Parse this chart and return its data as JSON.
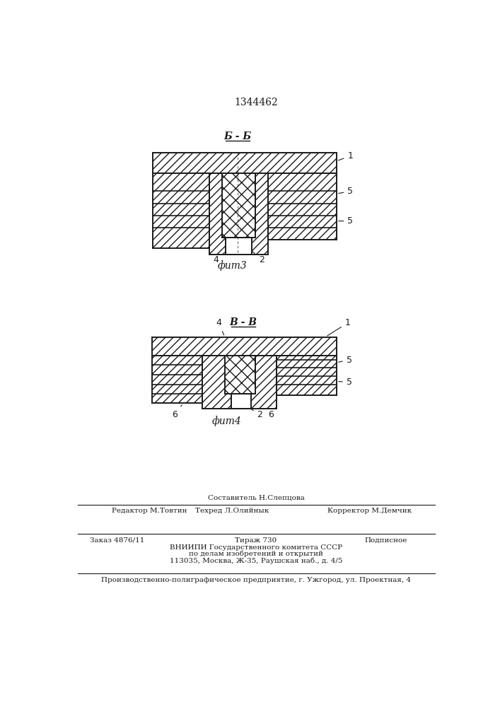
{
  "patent_number": "1344462",
  "fig3_label": "Б - Б",
  "fig3_caption": "фит3",
  "fig4_label": "В - В",
  "fig4_caption": "фит4",
  "bg_color": "#ffffff",
  "line_color": "#1a1a1a",
  "footer_sostavitel": "Составитель Н.Слепцова",
  "footer_redaktor": "Редактор М.Товтин",
  "footer_tekhred": "Техред Л.Олийнык",
  "footer_korrektor": "Корректор М.Демчик",
  "footer_zakaz": "Заказ 4876/11",
  "footer_tirazh": "Тираж 730",
  "footer_podp": "Подписное",
  "footer_vnipi": "ВНИИПИ Государственного комитета СССР",
  "footer_dela": "по делам изобретений и открытий",
  "footer_address": "113035, Москва, Ж-35, Раушская наб., д. 4/5",
  "footer_factory": "Производственно-полиграфическое предприятие, г. Ужгород, ул. Проектная, 4"
}
